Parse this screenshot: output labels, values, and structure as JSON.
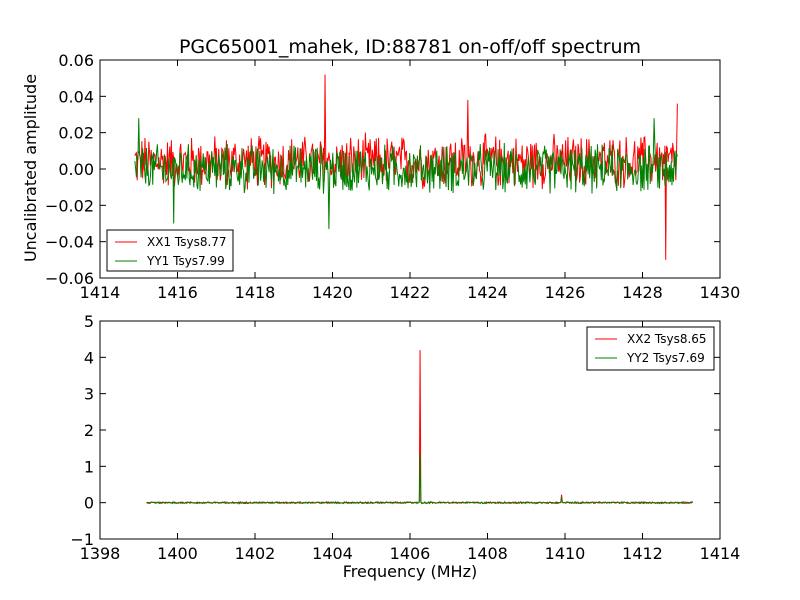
{
  "chart_data": [
    {
      "type": "line",
      "title": "PGC65001_mahek, ID:88781 on-off/off spectrum",
      "xlabel": "",
      "ylabel": "Uncalibrated amplitude",
      "xlim": [
        1414,
        1430
      ],
      "ylim": [
        -0.06,
        0.06
      ],
      "xticks": [
        "1414",
        "1416",
        "1418",
        "1420",
        "1422",
        "1424",
        "1426",
        "1428",
        "1430"
      ],
      "yticks": [
        "−0.06",
        "−0.04",
        "−0.02",
        "0.00",
        "0.02",
        "0.04",
        "0.06"
      ],
      "grid": false,
      "legend_position": "lower-left",
      "series": [
        {
          "name": "XX1 Tsys8.77",
          "color": "#ff0000",
          "x_range": [
            1414.9,
            1428.9
          ],
          "noise_amplitude": 0.012,
          "offset": 0.004,
          "spikes": [
            {
              "x": 1419.8,
              "y": 0.052
            },
            {
              "x": 1428.6,
              "y": -0.05
            },
            {
              "x": 1428.9,
              "y": 0.036
            },
            {
              "x": 1423.5,
              "y": 0.038
            }
          ]
        },
        {
          "name": "YY1 Tsys7.99",
          "color": "#008000",
          "x_range": [
            1414.9,
            1428.9
          ],
          "noise_amplitude": 0.011,
          "offset": 0.0,
          "spikes": [
            {
              "x": 1419.9,
              "y": -0.033
            },
            {
              "x": 1415.9,
              "y": -0.03
            },
            {
              "x": 1415.0,
              "y": 0.028
            },
            {
              "x": 1428.3,
              "y": 0.028
            }
          ]
        }
      ]
    },
    {
      "type": "line",
      "title": "",
      "xlabel": "Frequency (MHz)",
      "ylabel": "",
      "xlim": [
        1398,
        1414
      ],
      "ylim": [
        -1,
        5
      ],
      "xticks": [
        "1398",
        "1400",
        "1402",
        "1404",
        "1406",
        "1408",
        "1410",
        "1412",
        "1414"
      ],
      "yticks": [
        "−1",
        "0",
        "1",
        "2",
        "3",
        "4",
        "5"
      ],
      "grid": false,
      "legend_position": "upper-right",
      "series": [
        {
          "name": "XX2 Tsys8.65",
          "color": "#ff0000",
          "x_range": [
            1399.2,
            1413.3
          ],
          "noise_amplitude": 0.02,
          "offset": 0.0,
          "spikes": [
            {
              "x": 1406.27,
              "y": 4.2
            },
            {
              "x": 1409.92,
              "y": 0.22
            }
          ]
        },
        {
          "name": "YY2 Tsys7.69",
          "color": "#008000",
          "x_range": [
            1399.2,
            1413.3
          ],
          "noise_amplitude": 0.02,
          "offset": 0.0,
          "spikes": [
            {
              "x": 1406.27,
              "y": 1.35
            },
            {
              "x": 1409.92,
              "y": 0.15
            }
          ]
        }
      ]
    }
  ]
}
